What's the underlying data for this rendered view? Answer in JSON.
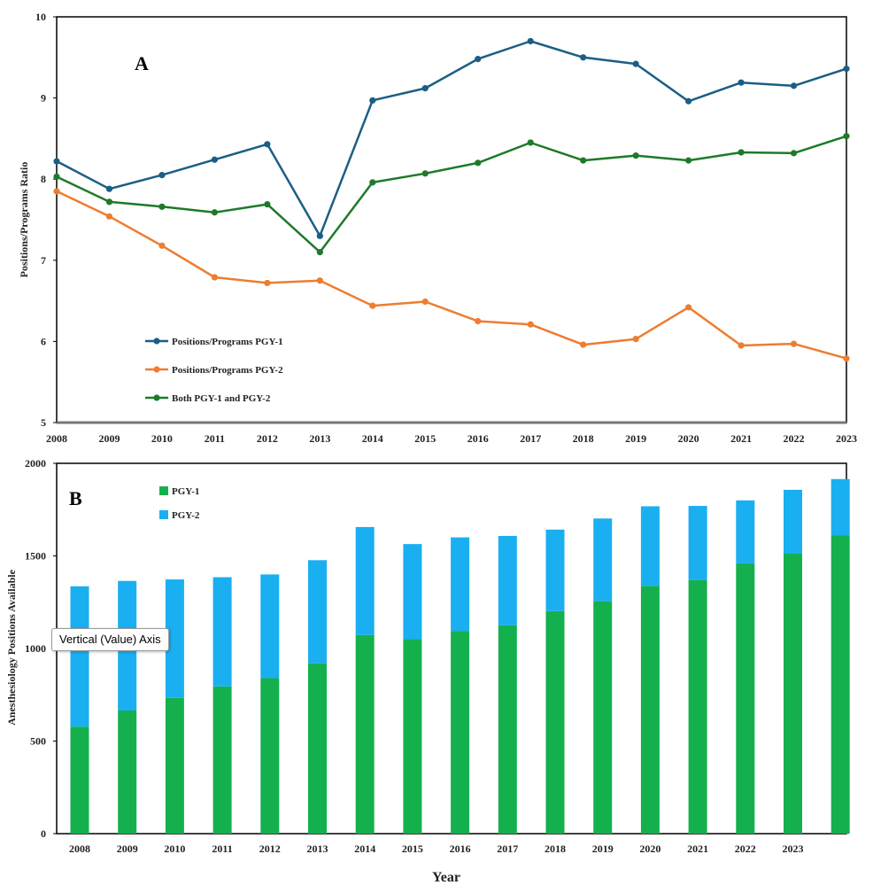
{
  "colors": {
    "pgy1_line": "#1b5e85",
    "pgy2_line": "#ed7d31",
    "both_line": "#1e7a2a",
    "pgy1_bar": "#14b04e",
    "pgy2_bar": "#1aaff0"
  },
  "tooltip": "Vertical (Value) Axis",
  "chart_data": [
    {
      "type": "line",
      "panel_label": "A",
      "ylabel": "Positions/Programs Ratio",
      "xlabel": "",
      "x": [
        "2008",
        "2009",
        "2010",
        "2011",
        "2012",
        "2013",
        "2014",
        "2015",
        "2016",
        "2017",
        "2018",
        "2019",
        "2020",
        "2021",
        "2022",
        "2023"
      ],
      "ylim": [
        5,
        10
      ],
      "yticks": [
        "5",
        "6",
        "7",
        "8",
        "9",
        "10"
      ],
      "legend_position": "bottom-left",
      "grid": false,
      "series": [
        {
          "name": "Positions/Programs PGY-1",
          "values": [
            8.22,
            7.88,
            8.05,
            8.24,
            8.43,
            7.3,
            8.97,
            9.12,
            9.48,
            9.7,
            9.5,
            9.42,
            8.96,
            9.19,
            9.15,
            9.36
          ]
        },
        {
          "name": "Positions/Programs PGY-2",
          "values": [
            7.85,
            7.54,
            7.18,
            6.79,
            6.72,
            6.75,
            6.44,
            6.49,
            6.25,
            6.21,
            5.96,
            6.03,
            6.42,
            5.95,
            5.97,
            5.79
          ]
        },
        {
          "name": "Both PGY-1 and PGY-2",
          "values": [
            8.03,
            7.72,
            7.66,
            7.59,
            7.69,
            7.1,
            7.96,
            8.07,
            8.2,
            8.45,
            8.23,
            8.29,
            8.23,
            8.33,
            8.32,
            8.53
          ]
        }
      ]
    },
    {
      "type": "bar",
      "stacked": true,
      "panel_label": "B",
      "ylabel": "Anesthesiology Positions Available",
      "xlabel": "Year",
      "categories": [
        "2008",
        "2009",
        "2010",
        "2011",
        "2012",
        "2013",
        "2014",
        "2015",
        "2016",
        "2017",
        "2018",
        "2019",
        "2020",
        "2021",
        "2022",
        "2023",
        ""
      ],
      "ylim": [
        0,
        2000
      ],
      "yticks": [
        "0",
        "500",
        "1000",
        "1500",
        "2000"
      ],
      "legend_position": "top-left",
      "grid": false,
      "series": [
        {
          "name": "PGY-1",
          "values": [
            578,
            665,
            733,
            795,
            840,
            920,
            1073,
            1050,
            1095,
            1125,
            1202,
            1255,
            1338,
            1370,
            1460,
            1512,
            1610
          ]
        },
        {
          "name": "PGY-2",
          "values": [
            758,
            700,
            640,
            590,
            560,
            557,
            583,
            514,
            505,
            483,
            440,
            447,
            430,
            400,
            340,
            345,
            305
          ]
        }
      ]
    }
  ]
}
